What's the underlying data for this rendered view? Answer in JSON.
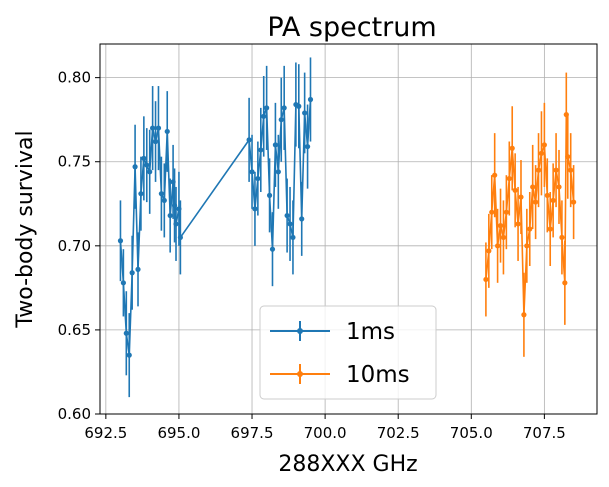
{
  "chart_data": {
    "type": "scatter",
    "title": "PA spectrum",
    "xlabel": "288XXX GHz",
    "ylabel": "Two-body survival",
    "xlim": [
      692.3,
      709.3
    ],
    "ylim": [
      0.6,
      0.82
    ],
    "xticks": [
      692.5,
      695.0,
      697.5,
      700.0,
      702.5,
      705.0,
      707.5
    ],
    "xtick_labels": [
      "692.5",
      "695.0",
      "697.5",
      "700.0",
      "702.5",
      "705.0",
      "707.5"
    ],
    "yticks": [
      0.6,
      0.65,
      0.7,
      0.75,
      0.8
    ],
    "ytick_labels": [
      "0.60",
      "0.65",
      "0.70",
      "0.75",
      "0.80"
    ],
    "grid": true,
    "legend_position": "bottom-center",
    "series": [
      {
        "name": "1ms",
        "color": "#1f77b4",
        "points": [
          [
            693.0,
            0.703,
            0.024
          ],
          [
            693.1,
            0.678,
            0.02
          ],
          [
            693.2,
            0.648,
            0.025
          ],
          [
            693.3,
            0.635,
            0.025
          ],
          [
            693.4,
            0.684,
            0.022
          ],
          [
            693.5,
            0.747,
            0.025
          ],
          [
            693.6,
            0.686,
            0.022
          ],
          [
            693.7,
            0.731,
            0.022
          ],
          [
            693.8,
            0.752,
            0.025
          ],
          [
            693.9,
            0.748,
            0.022
          ],
          [
            694.0,
            0.744,
            0.025
          ],
          [
            694.1,
            0.77,
            0.025
          ],
          [
            694.2,
            0.762,
            0.024
          ],
          [
            694.3,
            0.77,
            0.025
          ],
          [
            694.4,
            0.731,
            0.022
          ],
          [
            694.5,
            0.727,
            0.022
          ],
          [
            694.6,
            0.768,
            0.024
          ],
          [
            694.7,
            0.718,
            0.022
          ],
          [
            694.8,
            0.738,
            0.022
          ],
          [
            694.85,
            0.724,
            0.022
          ],
          [
            694.9,
            0.713,
            0.022
          ],
          [
            695.0,
            0.722,
            0.022
          ],
          [
            695.05,
            0.705,
            0.022
          ],
          [
            697.4,
            0.763,
            0.025
          ],
          [
            697.5,
            0.744,
            0.022
          ],
          [
            697.6,
            0.722,
            0.022
          ],
          [
            697.7,
            0.74,
            0.022
          ],
          [
            697.8,
            0.757,
            0.025
          ],
          [
            697.9,
            0.777,
            0.024
          ],
          [
            698.0,
            0.782,
            0.025
          ],
          [
            698.1,
            0.73,
            0.022
          ],
          [
            698.2,
            0.698,
            0.022
          ],
          [
            698.3,
            0.76,
            0.025
          ],
          [
            698.4,
            0.744,
            0.022
          ],
          [
            698.5,
            0.775,
            0.025
          ],
          [
            698.6,
            0.782,
            0.025
          ],
          [
            698.7,
            0.718,
            0.022
          ],
          [
            698.8,
            0.713,
            0.022
          ],
          [
            698.9,
            0.705,
            0.022
          ],
          [
            699.0,
            0.784,
            0.025
          ],
          [
            699.1,
            0.783,
            0.025
          ],
          [
            699.2,
            0.716,
            0.022
          ],
          [
            699.3,
            0.779,
            0.024
          ],
          [
            699.4,
            0.759,
            0.025
          ],
          [
            699.5,
            0.787,
            0.025
          ]
        ]
      },
      {
        "name": "10ms",
        "color": "#ff7f0e",
        "points": [
          [
            705.5,
            0.68,
            0.022
          ],
          [
            705.6,
            0.697,
            0.022
          ],
          [
            705.7,
            0.72,
            0.022
          ],
          [
            705.8,
            0.742,
            0.025
          ],
          [
            705.9,
            0.7,
            0.022
          ],
          [
            706.0,
            0.712,
            0.022
          ],
          [
            706.1,
            0.705,
            0.022
          ],
          [
            706.2,
            0.72,
            0.022
          ],
          [
            706.3,
            0.74,
            0.022
          ],
          [
            706.4,
            0.758,
            0.025
          ],
          [
            706.5,
            0.733,
            0.022
          ],
          [
            706.6,
            0.713,
            0.022
          ],
          [
            706.7,
            0.729,
            0.022
          ],
          [
            706.8,
            0.659,
            0.025
          ],
          [
            706.9,
            0.7,
            0.022
          ],
          [
            707.0,
            0.71,
            0.022
          ],
          [
            707.1,
            0.735,
            0.025
          ],
          [
            707.2,
            0.726,
            0.022
          ],
          [
            707.3,
            0.745,
            0.022
          ],
          [
            707.4,
            0.755,
            0.025
          ],
          [
            707.5,
            0.76,
            0.025
          ],
          [
            707.6,
            0.73,
            0.022
          ],
          [
            707.7,
            0.71,
            0.022
          ],
          [
            707.8,
            0.727,
            0.022
          ],
          [
            707.9,
            0.745,
            0.022
          ],
          [
            708.0,
            0.735,
            0.022
          ],
          [
            708.1,
            0.705,
            0.022
          ],
          [
            708.2,
            0.678,
            0.025
          ],
          [
            708.25,
            0.778,
            0.025
          ],
          [
            708.3,
            0.753,
            0.025
          ],
          [
            708.4,
            0.745,
            0.022
          ],
          [
            708.5,
            0.726,
            0.022
          ]
        ]
      }
    ]
  }
}
